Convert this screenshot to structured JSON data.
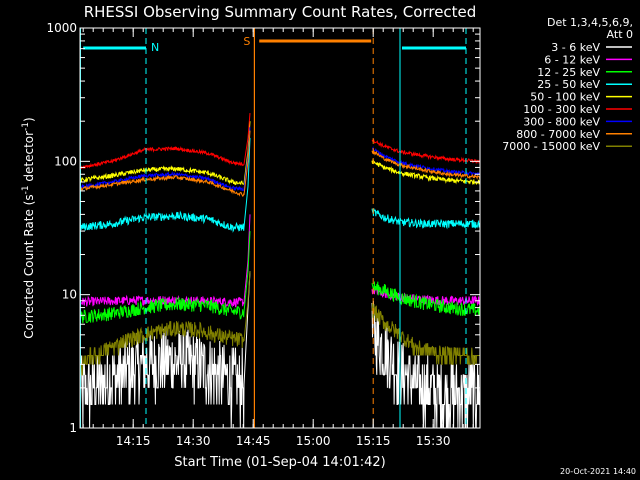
{
  "chart_data": {
    "type": "line",
    "title": "RHESSI Observing Summary Count Rates, Corrected",
    "xlabel": "Start Time (01-Sep-04 14:01:42)",
    "ylabel_main": "Corrected Count Rate (s",
    "ylabel_sup1": "-1",
    "ylabel_mid": " detector",
    "ylabel_sup2": "-1",
    "ylabel_end": ")",
    "yscale": "log",
    "ylim": [
      1,
      1000
    ],
    "xlim_minutes": [
      0,
      100
    ],
    "x_ticks": [
      {
        "min": 13.3,
        "label": "14:15"
      },
      {
        "min": 28.3,
        "label": "14:30"
      },
      {
        "min": 43.3,
        "label": "14:45"
      },
      {
        "min": 58.3,
        "label": "15:00"
      },
      {
        "min": 73.3,
        "label": "15:15"
      },
      {
        "min": 88.3,
        "label": "15:30"
      }
    ],
    "y_ticks": [
      {
        "value": 1,
        "label": "1"
      },
      {
        "value": 10,
        "label": "10"
      },
      {
        "value": 100,
        "label": "100"
      },
      {
        "value": 1000,
        "label": "1000"
      }
    ],
    "legend_header": [
      "Det 1,3,4,5,6,9,",
      "Att 0"
    ],
    "legend_placement": "right",
    "data_gap_minutes": [
      43,
      73
    ],
    "series": [
      {
        "name": "3 - 6 keV",
        "color": "#ffffff",
        "pre": [
          [
            0,
            1.8
          ],
          [
            8,
            2.3
          ],
          [
            16,
            3.0
          ],
          [
            24,
            3.2
          ],
          [
            32,
            2.8
          ],
          [
            38,
            2.2
          ],
          [
            41,
            2.1
          ]
        ],
        "spike": [
          [
            41,
            2.1
          ],
          [
            42,
            8
          ],
          [
            42.5,
            15
          ]
        ],
        "post": [
          [
            73,
            5.2
          ],
          [
            76,
            4.0
          ],
          [
            80,
            2.6
          ],
          [
            84,
            2.1
          ],
          [
            90,
            1.8
          ],
          [
            96,
            1.8
          ],
          [
            100,
            1.8
          ]
        ],
        "noise": 0.6
      },
      {
        "name": "6 - 12 keV",
        "color": "#ff00ff",
        "pre": [
          [
            0,
            8.8
          ],
          [
            10,
            9.0
          ],
          [
            20,
            9.1
          ],
          [
            30,
            9.0
          ],
          [
            38,
            8.8
          ],
          [
            41,
            8.8
          ]
        ],
        "spike": [
          [
            41,
            8.8
          ],
          [
            42,
            18
          ],
          [
            42.5,
            40
          ]
        ],
        "post": [
          [
            73,
            10.8
          ],
          [
            76,
            10.2
          ],
          [
            80,
            9.6
          ],
          [
            86,
            9.2
          ],
          [
            92,
            9.0
          ],
          [
            100,
            9.0
          ]
        ],
        "noise": 0.08
      },
      {
        "name": "12 - 25 keV",
        "color": "#00ff00",
        "pre": [
          [
            0,
            6.8
          ],
          [
            8,
            7.2
          ],
          [
            16,
            8.0
          ],
          [
            24,
            8.5
          ],
          [
            32,
            8.3
          ],
          [
            38,
            7.5
          ],
          [
            41,
            7.4
          ]
        ],
        "spike": [
          [
            41,
            7.4
          ],
          [
            42,
            15
          ],
          [
            42.5,
            30
          ]
        ],
        "post": [
          [
            73,
            11.5
          ],
          [
            76,
            10.8
          ],
          [
            80,
            9.5
          ],
          [
            86,
            8.6
          ],
          [
            92,
            8.0
          ],
          [
            100,
            7.6
          ]
        ],
        "noise": 0.12
      },
      {
        "name": "25 - 50 keV",
        "color": "#00ffff",
        "pre": [
          [
            0,
            32
          ],
          [
            8,
            34
          ],
          [
            16,
            38
          ],
          [
            24,
            39
          ],
          [
            32,
            37
          ],
          [
            38,
            32
          ],
          [
            41,
            32
          ]
        ],
        "spike": [
          [
            41,
            32
          ],
          [
            42,
            65
          ],
          [
            42.5,
            150
          ]
        ],
        "post": [
          [
            73,
            42
          ],
          [
            76,
            38
          ],
          [
            80,
            35
          ],
          [
            86,
            34
          ],
          [
            92,
            34
          ],
          [
            100,
            34
          ]
        ],
        "noise": 0.07
      },
      {
        "name": "50 - 100 keV",
        "color": "#ffff00",
        "pre": [
          [
            0,
            72
          ],
          [
            8,
            78
          ],
          [
            16,
            86
          ],
          [
            24,
            88
          ],
          [
            32,
            82
          ],
          [
            38,
            70
          ],
          [
            41,
            68
          ]
        ],
        "spike": [
          [
            41,
            68
          ],
          [
            42,
            120
          ],
          [
            42.5,
            200
          ]
        ],
        "post": [
          [
            73,
            100
          ],
          [
            76,
            90
          ],
          [
            80,
            82
          ],
          [
            86,
            76
          ],
          [
            92,
            72
          ],
          [
            100,
            70
          ]
        ],
        "noise": 0.04
      },
      {
        "name": "100 - 300 keV",
        "color": "#ff0000",
        "pre": [
          [
            0,
            90
          ],
          [
            8,
            100
          ],
          [
            16,
            122
          ],
          [
            24,
            125
          ],
          [
            32,
            115
          ],
          [
            38,
            98
          ],
          [
            41,
            95
          ]
        ],
        "spike": [
          [
            41,
            95
          ],
          [
            42,
            150
          ],
          [
            42.5,
            230
          ]
        ],
        "post": [
          [
            73,
            145
          ],
          [
            76,
            130
          ],
          [
            80,
            118
          ],
          [
            86,
            110
          ],
          [
            92,
            104
          ],
          [
            100,
            100
          ]
        ],
        "noise": 0.03
      },
      {
        "name": "300 - 800 keV",
        "color": "#0000ff",
        "pre": [
          [
            0,
            64
          ],
          [
            8,
            70
          ],
          [
            16,
            78
          ],
          [
            24,
            80
          ],
          [
            32,
            74
          ],
          [
            38,
            63
          ],
          [
            41,
            62
          ]
        ],
        "spike": [
          [
            41,
            62
          ],
          [
            42,
            110
          ],
          [
            42.5,
            180
          ]
        ],
        "post": [
          [
            73,
            125
          ],
          [
            76,
            110
          ],
          [
            80,
            98
          ],
          [
            86,
            90
          ],
          [
            92,
            84
          ],
          [
            100,
            80
          ]
        ],
        "noise": 0.03
      },
      {
        "name": "800 - 7000 keV",
        "color": "#ff8000",
        "pre": [
          [
            0,
            62
          ],
          [
            8,
            67
          ],
          [
            16,
            73
          ],
          [
            24,
            76
          ],
          [
            32,
            70
          ],
          [
            38,
            60
          ],
          [
            41,
            56
          ]
        ],
        "spike": [
          [
            41,
            56
          ],
          [
            42,
            100
          ],
          [
            42.5,
            170
          ]
        ],
        "post": [
          [
            73,
            120
          ],
          [
            76,
            105
          ],
          [
            80,
            94
          ],
          [
            86,
            86
          ],
          [
            92,
            80
          ],
          [
            100,
            76
          ]
        ],
        "noise": 0.03
      },
      {
        "name": "7000 - 15000 keV",
        "color": "#808000",
        "pre": [
          [
            0,
            3.0
          ],
          [
            6,
            3.8
          ],
          [
            12,
            4.6
          ],
          [
            18,
            5.2
          ],
          [
            24,
            5.6
          ],
          [
            30,
            5.4
          ],
          [
            36,
            4.8
          ],
          [
            41,
            4.5
          ]
        ],
        "spike": [
          [
            41,
            4.5
          ],
          [
            42,
            9
          ],
          [
            42.5,
            15
          ]
        ],
        "post": [
          [
            73,
            7.8
          ],
          [
            76,
            6.2
          ],
          [
            80,
            5.0
          ],
          [
            84,
            4.0
          ],
          [
            90,
            3.6
          ],
          [
            100,
            3.4
          ]
        ],
        "noise": 0.14
      }
    ],
    "annotations": {
      "n_label": "N",
      "s_label": "S",
      "night_color": "#00ffff",
      "saa_color": "#ff8000",
      "night_dashed_minutes": [
        16.5,
        96.5
      ],
      "night_solid_minutes": [
        0,
        80
      ],
      "night_bars_minutes": [
        [
          0.8,
          16.5
        ],
        [
          80.5,
          96.5
        ]
      ],
      "saa_solid_minutes": [
        43.6
      ],
      "saa_dashed_minutes": [
        73.3
      ],
      "saa_bar_minutes": [
        44.8,
        72.8
      ]
    },
    "grid": false
  },
  "footer": {
    "timestamp": "20-Oct-2021 14:40"
  }
}
